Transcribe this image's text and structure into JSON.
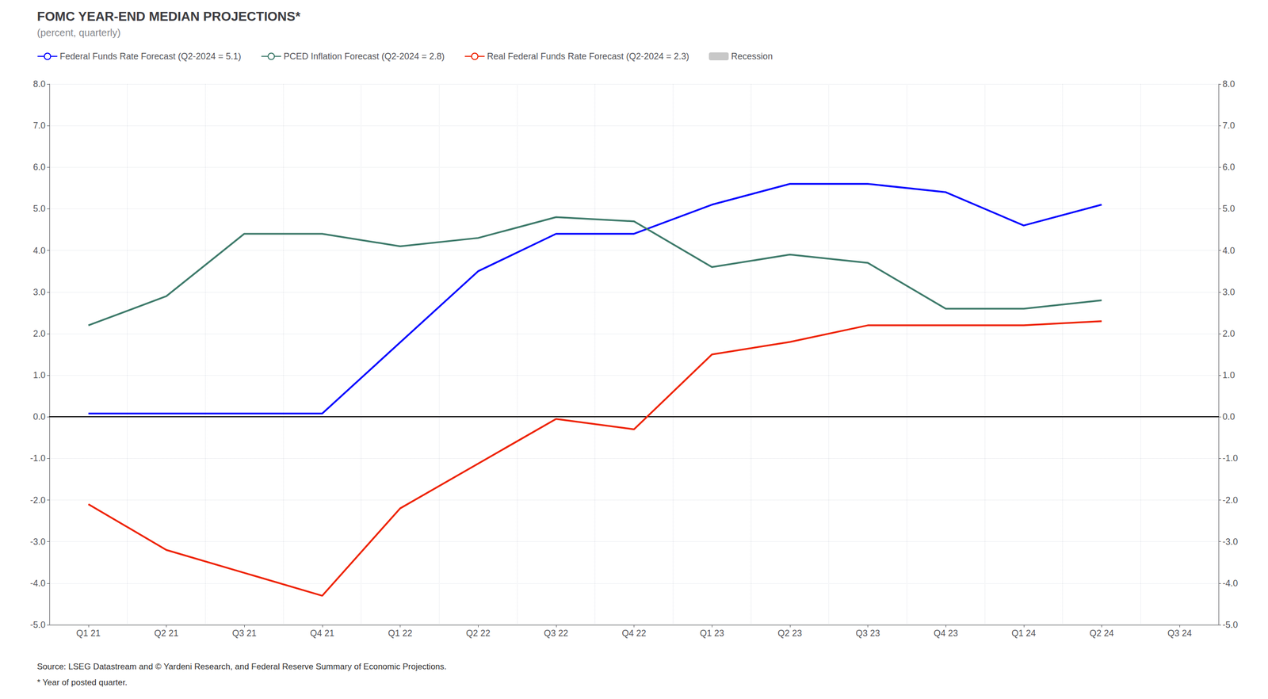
{
  "chart_data": {
    "type": "line",
    "title": "FOMC YEAR-END MEDIAN PROJECTIONS*",
    "subtitle": "(percent, quarterly)",
    "annotations": [
      "Source: LSEG Datastream and © Yardeni Research, and Federal Reserve Summary of Economic Projections.",
      "* Year of posted quarter."
    ],
    "categories": [
      "Q1 21",
      "Q2 21",
      "Q3 21",
      "Q4 21",
      "Q1 22",
      "Q2 22",
      "Q3 22",
      "Q4 22",
      "Q1 23",
      "Q2 23",
      "Q3 23",
      "Q4 23",
      "Q1 24",
      "Q2 24",
      "Q3 24"
    ],
    "series": [
      {
        "name": "Federal Funds Rate Forecast (Q2-2024 = 5.1)",
        "color": "#0000ff",
        "x": [
          "Q1 21",
          "Q2 21",
          "Q3 21",
          "Q4 21",
          "Q2 22",
          "Q3 22",
          "Q4 22",
          "Q1 23",
          "Q2 23",
          "Q3 23",
          "Q4 23",
          "Q1 24",
          "Q2 24"
        ],
        "values": [
          0.08,
          0.08,
          0.08,
          0.08,
          3.5,
          4.4,
          4.4,
          5.1,
          5.6,
          5.6,
          5.4,
          4.6,
          5.1
        ]
      },
      {
        "name": "PCED Inflation Forecast (Q2-2024 = 2.8)",
        "color": "#3d7a6a",
        "x": [
          "Q1 21",
          "Q2 21",
          "Q3 21",
          "Q4 21",
          "Q1 22",
          "Q2 22",
          "Q3 22",
          "Q4 22",
          "Q1 23",
          "Q2 23",
          "Q3 23",
          "Q4 23",
          "Q1 24",
          "Q2 24"
        ],
        "values": [
          2.2,
          2.9,
          4.4,
          4.4,
          4.1,
          4.3,
          4.8,
          4.7,
          3.6,
          3.9,
          3.7,
          2.6,
          2.6,
          2.8
        ]
      },
      {
        "name": "Real Federal Funds Rate Forecast (Q2-2024 = 2.3)",
        "color": "#ee2200",
        "x": [
          "Q1 21",
          "Q2 21",
          "Q4 21",
          "Q1 22",
          "Q3 22",
          "Q4 22",
          "Q1 23",
          "Q2 23",
          "Q3 23",
          "Q4 23",
          "Q1 24",
          "Q2 24"
        ],
        "values": [
          -2.1,
          -3.2,
          -4.3,
          -2.2,
          -0.05,
          -0.3,
          1.5,
          1.8,
          2.2,
          2.2,
          2.2,
          2.3
        ]
      },
      {
        "name": "Recession",
        "type": "bar",
        "color": "#c8c8c8",
        "x": [],
        "values": []
      }
    ],
    "ylim": [
      -5.0,
      8.0
    ],
    "yticks": [
      {
        "value": -5,
        "label": "-5.0"
      },
      {
        "value": -4,
        "label": "-4.0"
      },
      {
        "value": -3,
        "label": "-3.0"
      },
      {
        "value": -2,
        "label": "-2.0"
      },
      {
        "value": -1,
        "label": "-1.0"
      },
      {
        "value": 0,
        "label": "0.0"
      },
      {
        "value": 1,
        "label": "1.0"
      },
      {
        "value": 2,
        "label": "2.0"
      },
      {
        "value": 3,
        "label": "3.0"
      },
      {
        "value": 4,
        "label": "4.0"
      },
      {
        "value": 5,
        "label": "5.0"
      },
      {
        "value": 6,
        "label": "6.0"
      },
      {
        "value": 7,
        "label": "7.0"
      },
      {
        "value": 8,
        "label": "8.0"
      }
    ],
    "y2lim": [
      -5.0,
      8.0
    ],
    "y2ticks": [
      {
        "value": -5,
        "label": "-5.0"
      },
      {
        "value": -4,
        "label": "-4.0"
      },
      {
        "value": -3,
        "label": "-3.0"
      },
      {
        "value": -2,
        "label": "-2.0"
      },
      {
        "value": -1,
        "label": "-1.0"
      },
      {
        "value": 0,
        "label": "0.0"
      },
      {
        "value": 1,
        "label": "1.0"
      },
      {
        "value": 2,
        "label": "2.0"
      },
      {
        "value": 3,
        "label": "3.0"
      },
      {
        "value": 4,
        "label": "4.0"
      },
      {
        "value": 5,
        "label": "5.0"
      },
      {
        "value": 6,
        "label": "6.0"
      },
      {
        "value": 7,
        "label": "7.0"
      },
      {
        "value": 8,
        "label": "8.0"
      }
    ],
    "grid": true,
    "legend": "upper left"
  }
}
